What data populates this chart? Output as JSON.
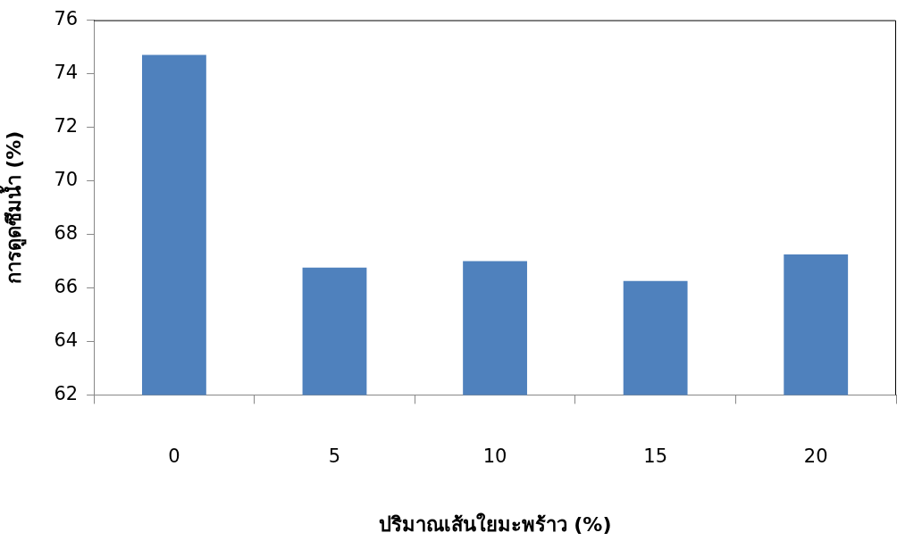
{
  "chart_data": {
    "type": "bar",
    "xlabel": "ปริมาณเส้นใยมะพร้าว (%)",
    "ylabel": "การดูดซึมน้ำ (%)",
    "categories": [
      "0",
      "5",
      "10",
      "15",
      "20"
    ],
    "values": [
      74.7,
      66.76,
      67.0,
      66.26,
      67.25
    ],
    "color": "#4f81bd",
    "ylim": [
      62,
      76
    ],
    "yticks": [
      62,
      64,
      66,
      68,
      70,
      72,
      74,
      76
    ],
    "grid": false,
    "legend": false
  }
}
